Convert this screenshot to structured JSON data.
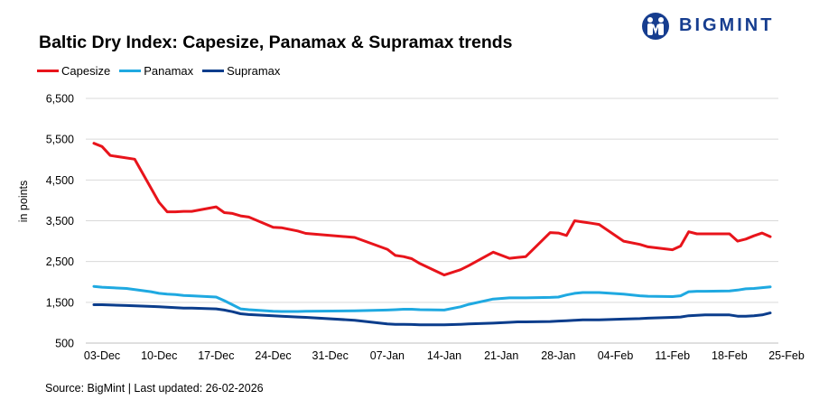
{
  "brand": {
    "name": "BIGMINT",
    "color": "#163d8f"
  },
  "source_text": "Source: BigMint | Last updated: 26-02-2026",
  "chart_data": {
    "type": "line",
    "title": "Baltic Dry Index: Capesize, Panamax & Supramax trends",
    "xlabel": "",
    "ylabel": "in points",
    "ylim": [
      500,
      6500
    ],
    "yticks": [
      500,
      1500,
      2500,
      3500,
      4500,
      5500,
      6500
    ],
    "yticklabels": [
      "500",
      "1,500",
      "2,500",
      "3,500",
      "4,500",
      "5,500",
      "6,500"
    ],
    "xlim": [
      -2,
      83
    ],
    "xticks": [
      0,
      7,
      14,
      21,
      28,
      35,
      42,
      49,
      56,
      63,
      70,
      77,
      84
    ],
    "xticklabels": [
      "03-Dec",
      "10-Dec",
      "17-Dec",
      "24-Dec",
      "31-Dec",
      "07-Jan",
      "14-Jan",
      "21-Jan",
      "28-Jan",
      "04-Feb",
      "11-Feb",
      "18-Feb",
      "25-Feb"
    ],
    "grid": "horizontal",
    "legend_position": "top-left",
    "series": [
      {
        "name": "Capesize",
        "color": "#e8141b",
        "x": [
          -1,
          0,
          1,
          4,
          7,
          8,
          9,
          10,
          11,
          14,
          15,
          16,
          17,
          18,
          21,
          22,
          24,
          25,
          31,
          35,
          36,
          37,
          38,
          39,
          42,
          44,
          45,
          48,
          50,
          51,
          52,
          55,
          56,
          57,
          58,
          59,
          60,
          61,
          64,
          66,
          67,
          70,
          71,
          72,
          73,
          74,
          77,
          78,
          79,
          80,
          81,
          82
        ],
        "values": [
          5400,
          5320,
          5100,
          5010,
          3950,
          3720,
          3720,
          3730,
          3730,
          3840,
          3700,
          3680,
          3620,
          3590,
          3340,
          3330,
          3250,
          3190,
          3090,
          2800,
          2650,
          2620,
          2570,
          2450,
          2170,
          2300,
          2400,
          2730,
          2580,
          2600,
          2620,
          3210,
          3200,
          3140,
          3500,
          3470,
          3440,
          3410,
          3000,
          2920,
          2860,
          2790,
          2880,
          3230,
          3180,
          3180,
          3180,
          3000,
          3050,
          3130,
          3200,
          3110
        ]
      },
      {
        "name": "Panamax",
        "color": "#1fa9e1",
        "x": [
          -1,
          0,
          3,
          6,
          7,
          8,
          9,
          10,
          11,
          14,
          15,
          16,
          17,
          18,
          21,
          22,
          24,
          25,
          31,
          35,
          36,
          37,
          38,
          39,
          42,
          44,
          45,
          48,
          50,
          51,
          52,
          55,
          56,
          57,
          58,
          59,
          60,
          61,
          64,
          66,
          67,
          70,
          71,
          72,
          73,
          74,
          77,
          78,
          79,
          80,
          81,
          82
        ],
        "values": [
          1890,
          1870,
          1840,
          1760,
          1720,
          1700,
          1690,
          1670,
          1660,
          1630,
          1540,
          1440,
          1340,
          1320,
          1280,
          1275,
          1275,
          1280,
          1290,
          1310,
          1320,
          1330,
          1330,
          1320,
          1310,
          1390,
          1450,
          1580,
          1610,
          1610,
          1610,
          1620,
          1630,
          1680,
          1720,
          1740,
          1740,
          1740,
          1700,
          1660,
          1650,
          1640,
          1660,
          1760,
          1770,
          1770,
          1780,
          1800,
          1830,
          1840,
          1860,
          1880
        ]
      },
      {
        "name": "Supramax",
        "color": "#0b3d8c",
        "x": [
          -1,
          0,
          3,
          6,
          7,
          8,
          9,
          10,
          11,
          14,
          15,
          16,
          17,
          18,
          21,
          22,
          24,
          25,
          31,
          35,
          36,
          37,
          38,
          39,
          42,
          44,
          45,
          48,
          50,
          51,
          52,
          55,
          56,
          57,
          58,
          59,
          60,
          61,
          64,
          66,
          67,
          70,
          71,
          72,
          73,
          74,
          77,
          78,
          79,
          80,
          81,
          82
        ],
        "values": [
          1440,
          1440,
          1420,
          1400,
          1390,
          1380,
          1370,
          1360,
          1360,
          1340,
          1310,
          1270,
          1220,
          1200,
          1170,
          1160,
          1140,
          1130,
          1060,
          970,
          960,
          960,
          955,
          950,
          950,
          960,
          970,
          990,
          1010,
          1020,
          1020,
          1030,
          1040,
          1050,
          1060,
          1070,
          1070,
          1070,
          1090,
          1100,
          1110,
          1130,
          1140,
          1170,
          1180,
          1190,
          1190,
          1160,
          1160,
          1170,
          1190,
          1240
        ]
      }
    ]
  }
}
